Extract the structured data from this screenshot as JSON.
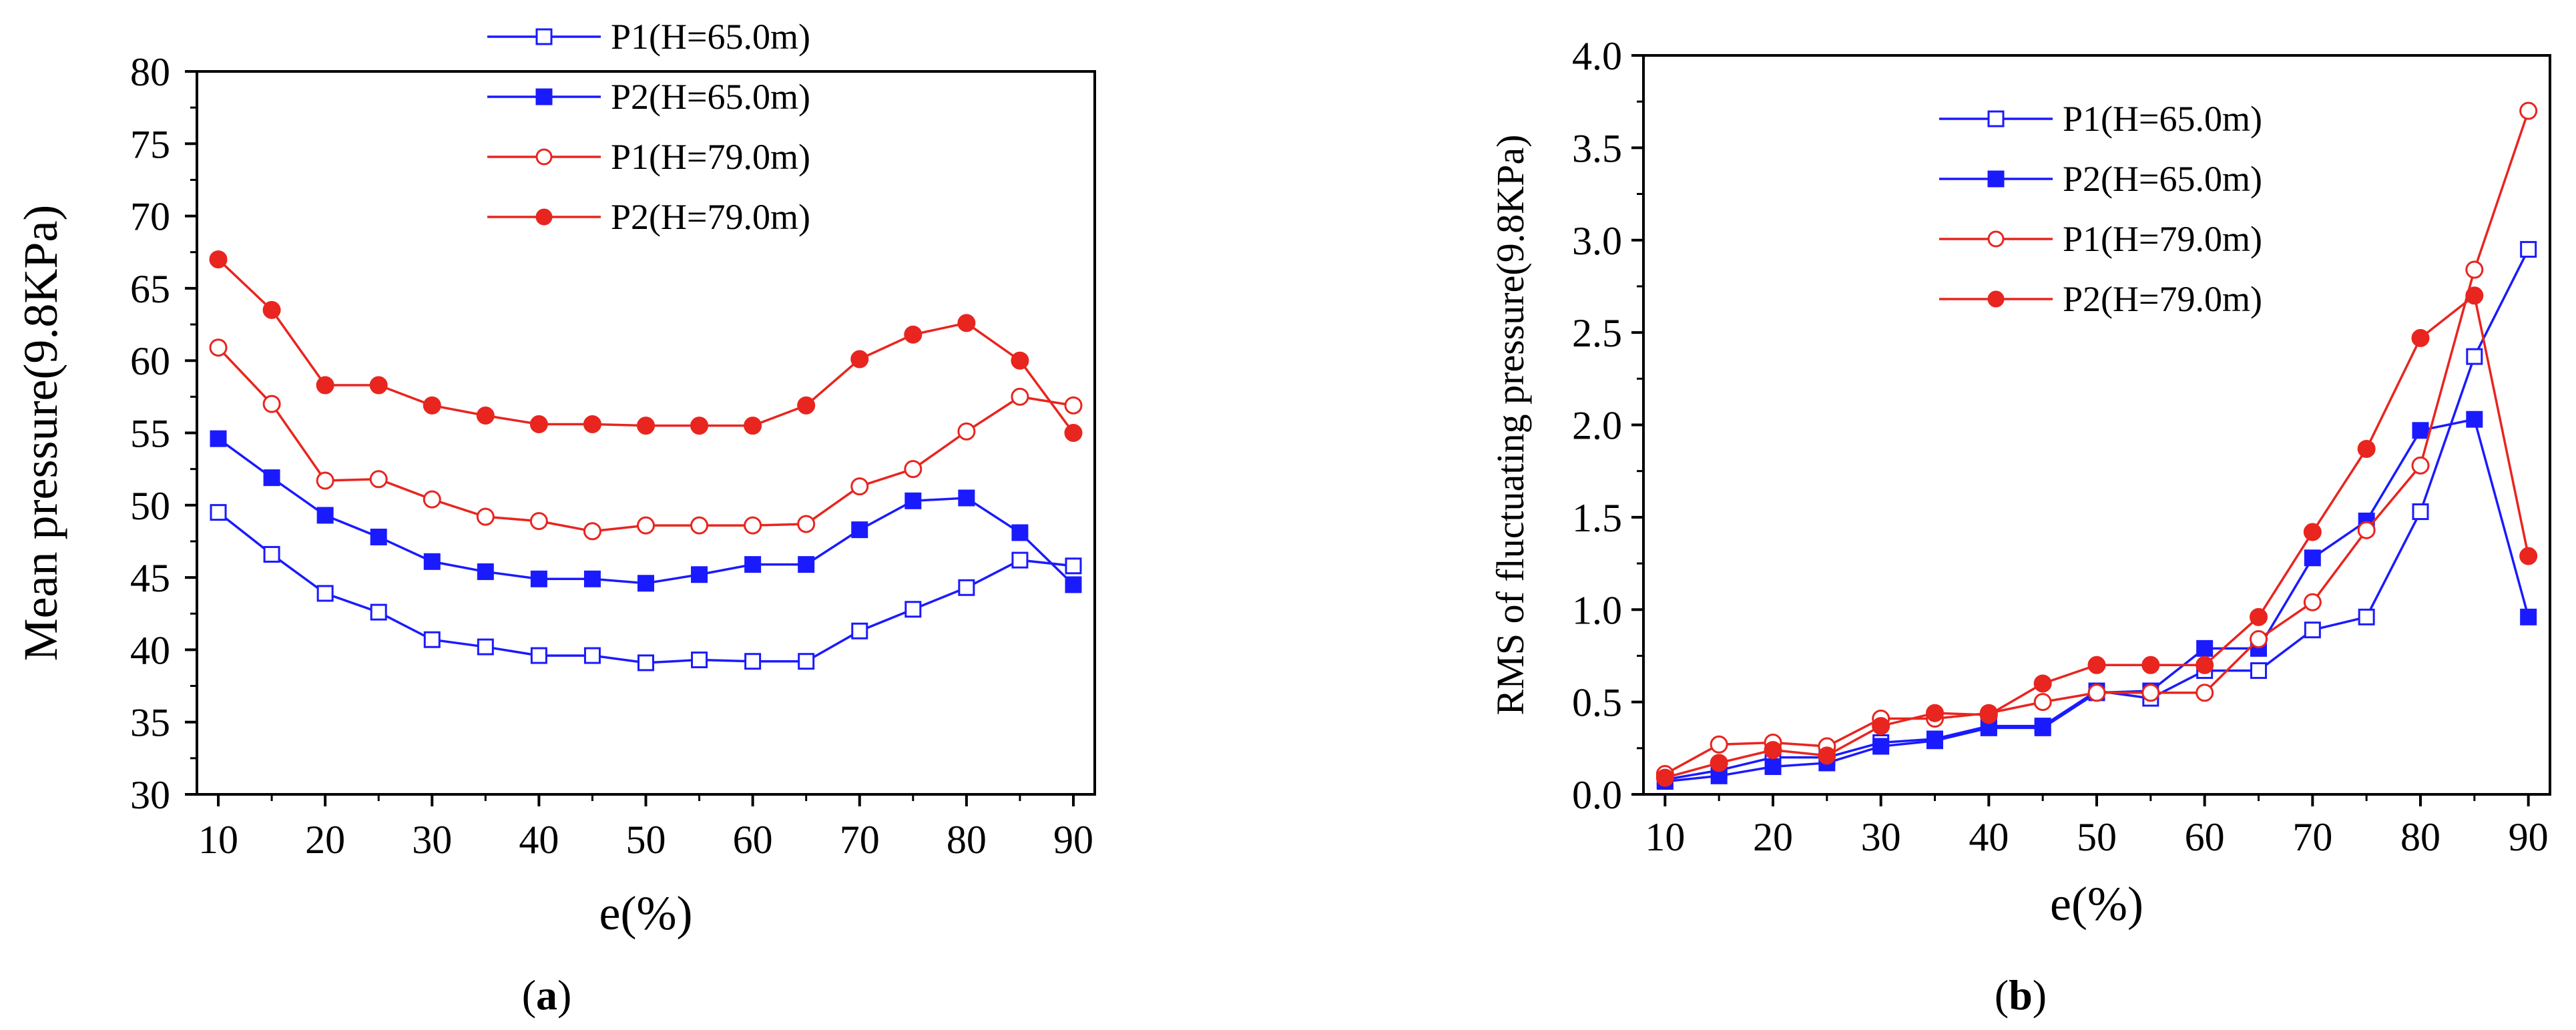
{
  "figure": {
    "captions": [
      {
        "open": "(",
        "letter": "a",
        "close": ")"
      },
      {
        "open": "(",
        "letter": "b",
        "close": ")"
      }
    ]
  },
  "chart_data": [
    {
      "type": "line",
      "panel": "a",
      "xlabel": "e(%)",
      "ylabel": "Mean pressure(9.8KPa)",
      "xlim": [
        8,
        92
      ],
      "ylim": [
        30,
        80
      ],
      "xticks": [
        10,
        20,
        30,
        40,
        50,
        60,
        70,
        80,
        90
      ],
      "yticks": [
        30,
        35,
        40,
        45,
        50,
        55,
        60,
        65,
        70,
        75,
        80
      ],
      "grid": false,
      "legend_position": "top-center",
      "x": [
        10,
        15,
        20,
        25,
        30,
        35,
        40,
        45,
        50,
        55,
        60,
        65,
        70,
        75,
        80,
        85,
        90
      ],
      "series": [
        {
          "name": "P1(H=65.0m)",
          "color": "#1a1aff",
          "marker": "square-open",
          "values": [
            49.5,
            46.6,
            43.9,
            42.6,
            40.7,
            40.2,
            39.6,
            39.6,
            39.1,
            39.3,
            39.2,
            39.2,
            41.3,
            42.8,
            44.3,
            46.2,
            45.8
          ]
        },
        {
          "name": "P2(H=65.0m)",
          "color": "#1a1aff",
          "marker": "square-filled",
          "values": [
            54.6,
            51.9,
            49.3,
            47.8,
            46.1,
            45.4,
            44.9,
            44.9,
            44.6,
            45.2,
            45.9,
            45.9,
            48.3,
            50.3,
            50.5,
            48.1,
            44.5
          ]
        },
        {
          "name": "P1(H=79.0m)",
          "color": "#e8251f",
          "marker": "circle-open",
          "values": [
            60.9,
            57.0,
            51.7,
            51.8,
            50.4,
            49.2,
            48.9,
            48.2,
            48.6,
            48.6,
            48.6,
            48.7,
            51.3,
            52.5,
            55.1,
            57.5,
            56.9
          ]
        },
        {
          "name": "P2(H=79.0m)",
          "color": "#e8251f",
          "marker": "circle-filled",
          "values": [
            67.0,
            63.5,
            58.3,
            58.3,
            56.9,
            56.2,
            55.6,
            55.6,
            55.5,
            55.5,
            55.5,
            56.9,
            60.1,
            61.8,
            62.6,
            60.0,
            55.0
          ]
        }
      ]
    },
    {
      "type": "line",
      "panel": "b",
      "xlabel": "e(%)",
      "ylabel": "RMS of fluctuating pressure(9.8KPa)",
      "xlim": [
        8,
        92
      ],
      "ylim": [
        0.0,
        4.0
      ],
      "xticks": [
        10,
        20,
        30,
        40,
        50,
        60,
        70,
        80,
        90
      ],
      "yticks": [
        0.0,
        0.5,
        1.0,
        1.5,
        2.0,
        2.5,
        3.0,
        3.5,
        4.0
      ],
      "ytick_labels": [
        "0.0",
        "0.5",
        "1.0",
        "1.5",
        "2.0",
        "2.5",
        "3.0",
        "3.5",
        "4.0"
      ],
      "grid": false,
      "legend_position": "top-center",
      "x": [
        10,
        15,
        20,
        25,
        30,
        35,
        40,
        45,
        50,
        55,
        60,
        65,
        70,
        75,
        80,
        85,
        90
      ],
      "series": [
        {
          "name": "P1(H=65.0m)",
          "color": "#1a1aff",
          "marker": "square-open",
          "values": [
            0.08,
            0.13,
            0.2,
            0.2,
            0.28,
            0.3,
            0.37,
            0.37,
            0.56,
            0.52,
            0.67,
            0.67,
            0.89,
            0.96,
            1.53,
            2.37,
            2.95
          ]
        },
        {
          "name": "P2(H=65.0m)",
          "color": "#1a1aff",
          "marker": "square-filled",
          "values": [
            0.07,
            0.1,
            0.15,
            0.17,
            0.26,
            0.29,
            0.36,
            0.36,
            0.55,
            0.56,
            0.79,
            0.79,
            1.28,
            1.48,
            1.97,
            2.03,
            0.96
          ]
        },
        {
          "name": "P1(H=79.0m)",
          "color": "#e8251f",
          "marker": "circle-open",
          "values": [
            0.11,
            0.27,
            0.28,
            0.26,
            0.41,
            0.41,
            0.44,
            0.5,
            0.55,
            0.55,
            0.55,
            0.84,
            1.04,
            1.43,
            1.78,
            2.84,
            3.7
          ]
        },
        {
          "name": "P2(H=79.0m)",
          "color": "#e8251f",
          "marker": "circle-filled",
          "values": [
            0.09,
            0.17,
            0.24,
            0.21,
            0.37,
            0.44,
            0.43,
            0.6,
            0.7,
            0.7,
            0.7,
            0.96,
            1.42,
            1.87,
            2.47,
            2.7,
            1.29
          ]
        }
      ]
    }
  ]
}
